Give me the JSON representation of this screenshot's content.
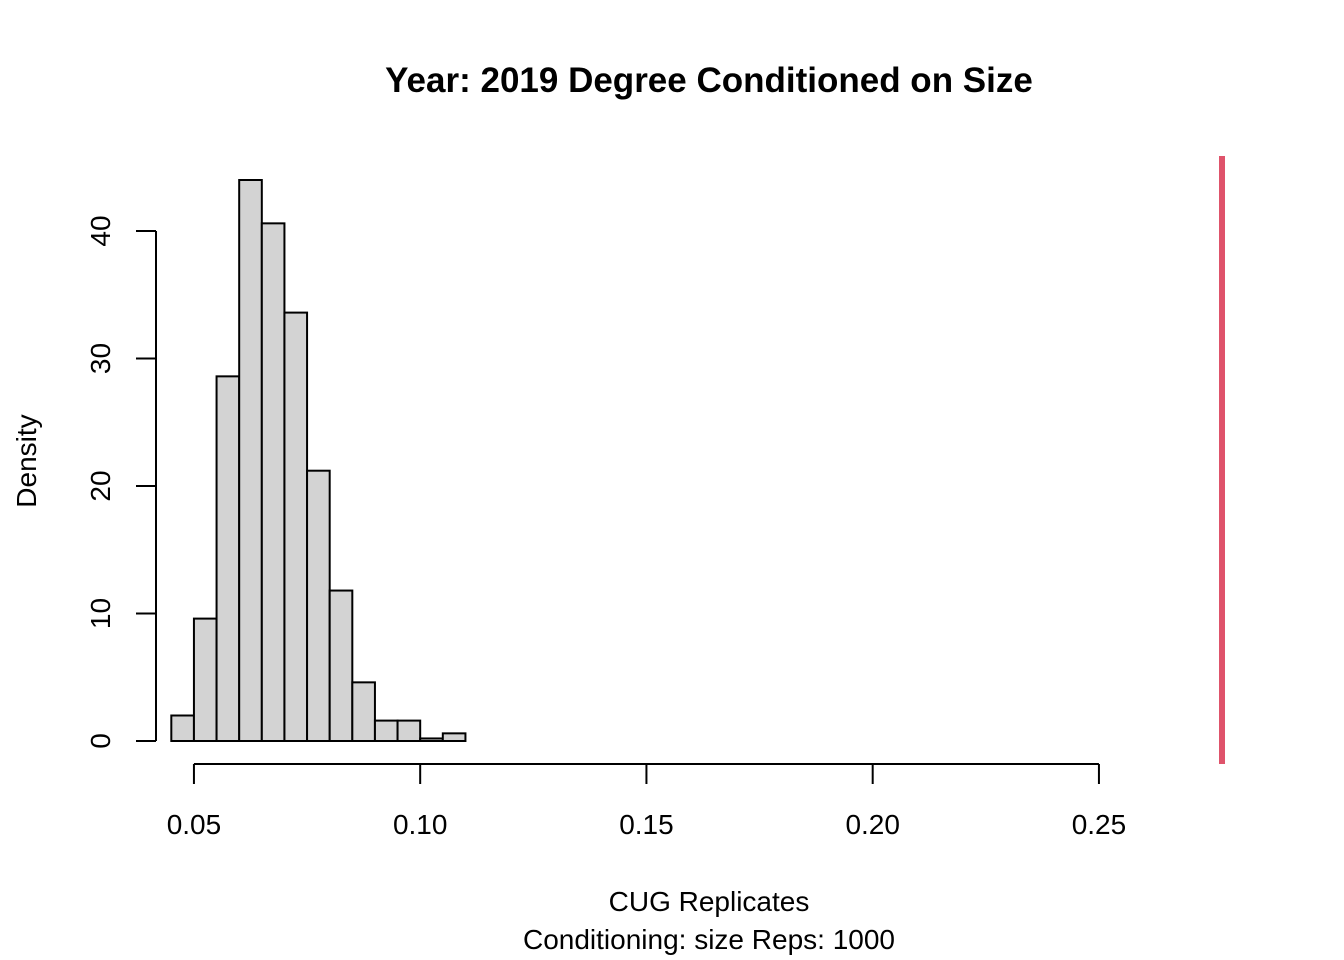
{
  "chart_data": {
    "type": "bar",
    "title": "Year: 2019  Degree Conditioned on Size",
    "xlabel": "CUG Replicates",
    "subtitle": "Conditioning: size Reps: 1000",
    "ylabel": "Density",
    "xlim": [
      0.0425,
      0.2825
    ],
    "ylim": [
      0,
      44.0
    ],
    "x_ticks": [
      "0.05",
      "0.10",
      "0.15",
      "0.20",
      "0.25"
    ],
    "x_tick_values": [
      0.05,
      0.1,
      0.15,
      0.2,
      0.25
    ],
    "y_ticks": [
      "0",
      "10",
      "20",
      "30",
      "40"
    ],
    "y_tick_values": [
      0,
      10,
      20,
      30,
      40
    ],
    "bin_edges": [
      0.045,
      0.05,
      0.055,
      0.06,
      0.065,
      0.07,
      0.075,
      0.08,
      0.085,
      0.09,
      0.095,
      0.1,
      0.105,
      0.11
    ],
    "values": [
      2.0,
      9.6,
      28.6,
      44.0,
      40.6,
      33.6,
      21.2,
      11.8,
      4.6,
      1.6,
      1.6,
      0.2,
      0.6
    ],
    "observed_line": {
      "x": 0.2825,
      "color": "#df536b"
    },
    "bar_color": "#d3d3d3",
    "grid": false,
    "legend": "none"
  }
}
